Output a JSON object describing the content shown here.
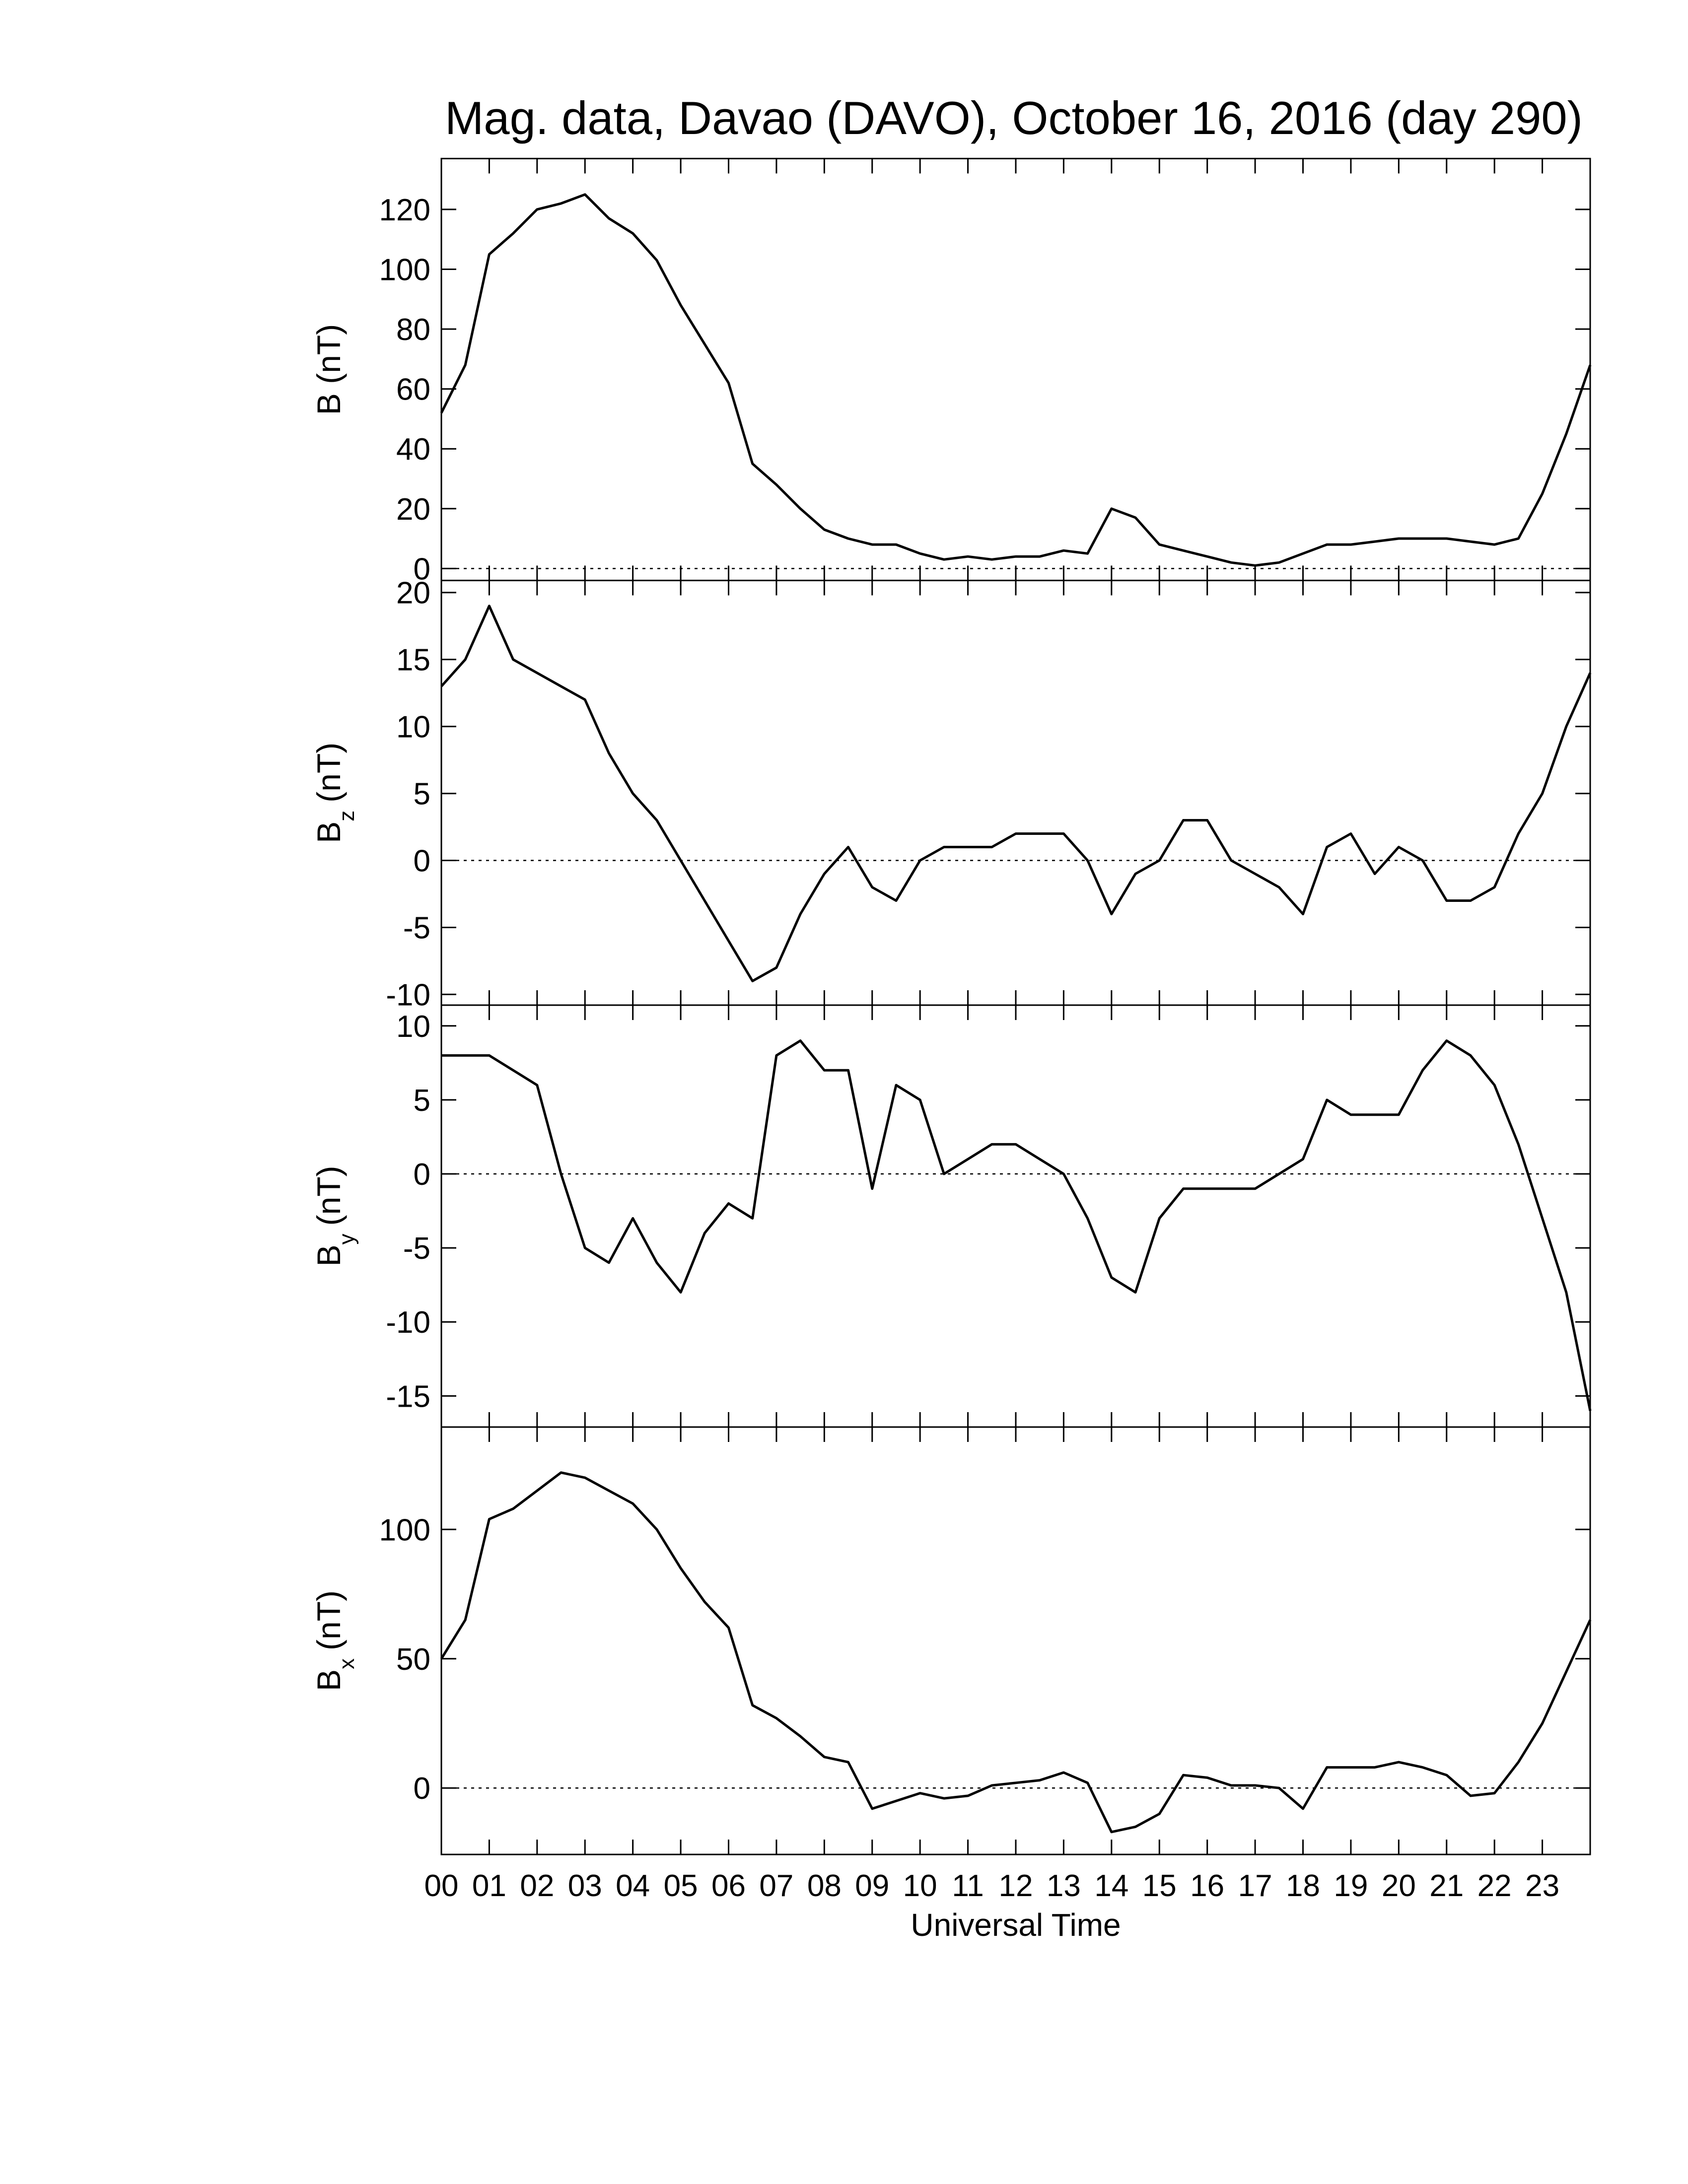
{
  "chart_data": [
    {
      "type": "line",
      "title": "Mag. data, Davao (DAVO), October 16, 2016 (day 290)",
      "ylabel_parts": [
        "B (nT)"
      ],
      "color": "#000000",
      "hline": 0,
      "xlim": [
        0,
        24
      ],
      "ylim": [
        -4,
        137
      ],
      "yticks": [
        0,
        20,
        40,
        60,
        80,
        100,
        120
      ],
      "x": [
        0,
        0.5,
        1,
        1.5,
        2,
        2.5,
        3,
        3.5,
        4,
        4.5,
        5,
        5.5,
        6,
        6.5,
        7,
        7.5,
        8,
        8.5,
        9,
        9.5,
        10,
        10.5,
        11,
        11.5,
        12,
        12.5,
        13,
        13.5,
        14,
        14.5,
        15,
        15.5,
        16,
        16.5,
        17,
        17.5,
        18,
        18.5,
        19,
        19.5,
        20,
        20.5,
        21,
        21.5,
        22,
        22.5,
        23,
        23.5,
        24
      ],
      "values": [
        52,
        68,
        105,
        112,
        120,
        122,
        125,
        117,
        112,
        103,
        88,
        75,
        62,
        35,
        28,
        20,
        13,
        10,
        8,
        8,
        5,
        3,
        4,
        3,
        4,
        4,
        6,
        5,
        20,
        17,
        8,
        6,
        4,
        2,
        1,
        2,
        5,
        8,
        8,
        9,
        10,
        10,
        10,
        9,
        8,
        10,
        25,
        45,
        68
      ]
    },
    {
      "type": "line",
      "ylabel_parts": [
        "B",
        "z",
        "(nT)"
      ],
      "color": "#000000",
      "hline": 0,
      "xlim": [
        0,
        24
      ],
      "ylim": [
        -10.8,
        20.9
      ],
      "yticks": [
        -10,
        -5,
        0,
        5,
        10,
        15,
        20
      ],
      "x": [
        0,
        0.5,
        1,
        1.5,
        2,
        2.5,
        3,
        3.5,
        4,
        4.5,
        5,
        5.5,
        6,
        6.5,
        7,
        7.5,
        8,
        8.5,
        9,
        9.5,
        10,
        10.5,
        11,
        11.5,
        12,
        12.5,
        13,
        13.5,
        14,
        14.5,
        15,
        15.5,
        16,
        16.5,
        17,
        17.5,
        18,
        18.5,
        19,
        19.5,
        20,
        20.5,
        21,
        21.5,
        22,
        22.5,
        23,
        23.5,
        24
      ],
      "values": [
        13,
        15,
        19,
        15,
        14,
        13,
        12,
        8,
        5,
        3,
        0,
        -3,
        -6,
        -9,
        -8,
        -4,
        -1,
        1,
        -2,
        -3,
        0,
        1,
        1,
        1,
        2,
        2,
        2,
        0,
        -4,
        -1,
        0,
        3,
        3,
        0,
        -1,
        -2,
        -4,
        1,
        2,
        -1,
        1,
        0,
        -3,
        -3,
        -2,
        2,
        5,
        10,
        14
      ]
    },
    {
      "type": "line",
      "ylabel_parts": [
        "B",
        "y",
        "(nT)"
      ],
      "color": "#000000",
      "hline": 0,
      "xlim": [
        0,
        24
      ],
      "ylim": [
        -17.1,
        11.4
      ],
      "yticks": [
        -15,
        -10,
        -5,
        0,
        5,
        10
      ],
      "x": [
        0,
        0.5,
        1,
        1.5,
        2,
        2.5,
        3,
        3.5,
        4,
        4.5,
        5,
        5.5,
        6,
        6.5,
        7,
        7.5,
        8,
        8.5,
        9,
        9.5,
        10,
        10.5,
        11,
        11.5,
        12,
        12.5,
        13,
        13.5,
        14,
        14.5,
        15,
        15.5,
        16,
        16.5,
        17,
        17.5,
        18,
        18.5,
        19,
        19.5,
        20,
        20.5,
        21,
        21.5,
        22,
        22.5,
        23,
        23.5,
        24
      ],
      "values": [
        8,
        8,
        8,
        7,
        6,
        0,
        -5,
        -6,
        -3,
        -6,
        -8,
        -4,
        -2,
        -3,
        8,
        9,
        7,
        7,
        -1,
        6,
        5,
        0,
        1,
        2,
        2,
        1,
        0,
        -3,
        -7,
        -8,
        -3,
        -1,
        -1,
        -1,
        -1,
        0,
        1,
        5,
        4,
        4,
        4,
        7,
        9,
        8,
        6,
        2,
        -3,
        -8,
        -16
      ]
    },
    {
      "type": "line",
      "ylabel_parts": [
        "B",
        "x",
        "(nT)"
      ],
      "xlabel": "Universal Time",
      "color": "#000000",
      "hline": 0,
      "xlim": [
        0,
        24
      ],
      "ylim": [
        -25.7,
        139.6
      ],
      "yticks": [
        0,
        50,
        100
      ],
      "xticks": [
        {
          "value": 0,
          "label": "00"
        },
        {
          "value": 1,
          "label": "01"
        },
        {
          "value": 2,
          "label": "02"
        },
        {
          "value": 3,
          "label": "03"
        },
        {
          "value": 4,
          "label": "04"
        },
        {
          "value": 5,
          "label": "05"
        },
        {
          "value": 6,
          "label": "06"
        },
        {
          "value": 7,
          "label": "07"
        },
        {
          "value": 8,
          "label": "08"
        },
        {
          "value": 9,
          "label": "09"
        },
        10,
        11,
        12,
        13,
        14,
        15,
        16,
        17,
        18,
        19,
        20,
        21,
        22,
        23
      ],
      "x": [
        0,
        0.5,
        1,
        1.5,
        2,
        2.5,
        3,
        3.5,
        4,
        4.5,
        5,
        5.5,
        6,
        6.5,
        7,
        7.5,
        8,
        8.5,
        9,
        9.5,
        10,
        10.5,
        11,
        11.5,
        12,
        12.5,
        13,
        13.5,
        14,
        14.5,
        15,
        15.5,
        16,
        16.5,
        17,
        17.5,
        18,
        18.5,
        19,
        19.5,
        20,
        20.5,
        21,
        21.5,
        22,
        22.5,
        23,
        23.5,
        24
      ],
      "values": [
        50,
        65,
        104,
        108,
        115,
        122,
        120,
        115,
        110,
        100,
        85,
        72,
        62,
        32,
        27,
        20,
        12,
        10,
        -8,
        -5,
        -2,
        -4,
        -3,
        1,
        2,
        3,
        6,
        2,
        -17,
        -15,
        -10,
        5,
        4,
        1,
        1,
        0,
        -8,
        8,
        8,
        8,
        10,
        8,
        5,
        -3,
        -2,
        10,
        25,
        45,
        65
      ]
    }
  ]
}
